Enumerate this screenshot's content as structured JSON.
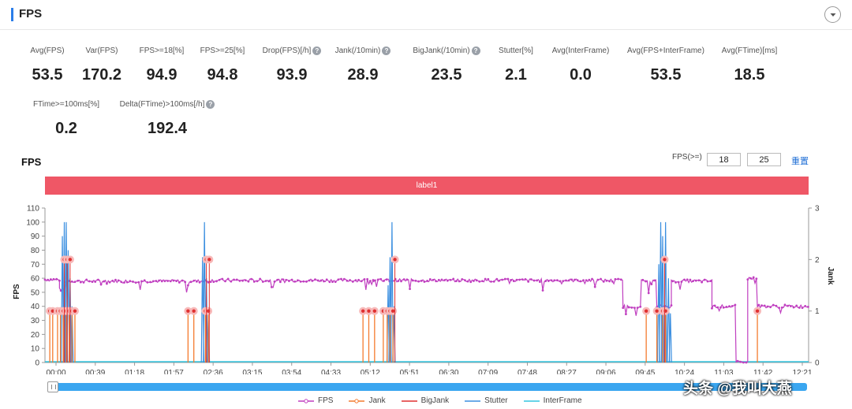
{
  "header": {
    "title": "FPS"
  },
  "metrics": [
    {
      "label": "Avg(FPS)",
      "value": "53.5",
      "help": false
    },
    {
      "label": "Var(FPS)",
      "value": "170.2",
      "help": false
    },
    {
      "label": "FPS>=18[%]",
      "value": "94.9",
      "help": false
    },
    {
      "label": "FPS>=25[%]",
      "value": "94.8",
      "help": false
    },
    {
      "label": "Drop(FPS)[/h]",
      "value": "93.9",
      "help": true
    },
    {
      "label": "Jank(/10min)",
      "value": "28.9",
      "help": true
    },
    {
      "label": "BigJank(/10min)",
      "value": "23.5",
      "help": true
    },
    {
      "label": "Stutter[%]",
      "value": "2.1",
      "help": false
    },
    {
      "label": "Avg(InterFrame)",
      "value": "0.0",
      "help": false
    },
    {
      "label": "Avg(FPS+InterFrame)",
      "value": "53.5",
      "help": false
    },
    {
      "label": "Avg(FTime)[ms]",
      "value": "18.5",
      "help": false
    },
    {
      "label": "FTime>=100ms[%]",
      "value": "0.2",
      "help": false
    },
    {
      "label": "Delta(FTime)>100ms[/h]",
      "value": "192.4",
      "help": true
    }
  ],
  "chart_section": {
    "title": "FPS",
    "threshold_label": "FPS(>=)",
    "threshold_1": "18",
    "threshold_2": "25",
    "reset_label": "重置",
    "band_label": "label1"
  },
  "watermark": "头条 @我叫大燕",
  "colors": {
    "fps": "#c03fc0",
    "jank": "#f47b2f",
    "bigjank": "#e03030",
    "stutter": "#3b8fe0",
    "interframe": "#33c6e0",
    "band": "#ef5766",
    "slider": "#3aa6f0"
  },
  "chart_data": {
    "type": "line",
    "title": "",
    "ylabel": "FPS",
    "y2label": "Jank",
    "ylim": [
      0,
      110
    ],
    "y2lim": [
      0,
      3
    ],
    "yticks": [
      0,
      10,
      20,
      30,
      40,
      50,
      60,
      70,
      80,
      90,
      100,
      110
    ],
    "y2ticks": [
      0,
      1,
      2,
      3
    ],
    "xlim_seconds": [
      0,
      790
    ],
    "xticks": [
      "00:00",
      "00:39",
      "01:18",
      "01:57",
      "02:36",
      "03:15",
      "03:54",
      "04:33",
      "05:12",
      "05:51",
      "06:30",
      "07:09",
      "07:48",
      "08:27",
      "09:06",
      "09:45",
      "10:24",
      "11:03",
      "11:42",
      "12:21"
    ],
    "legend": [
      "FPS",
      "Jank",
      "BigJank",
      "Stutter",
      "InterFrame"
    ],
    "legend_position": "bottom",
    "fps_segments": [
      {
        "t": [
          0,
          15
        ],
        "value": 59
      },
      {
        "t": [
          15,
          22
        ],
        "value": 52
      },
      {
        "t": [
          22,
          170
        ],
        "value": 58
      },
      {
        "t": [
          170,
          340
        ],
        "value": 58.5
      },
      {
        "t": [
          340,
          470
        ],
        "value": 58.5
      },
      {
        "t": [
          470,
          598
        ],
        "value": 58.5
      },
      {
        "t": [
          598,
          617
        ],
        "value": 40
      },
      {
        "t": [
          617,
          633
        ],
        "value": 58
      },
      {
        "t": [
          633,
          648
        ],
        "value": 40
      },
      {
        "t": [
          648,
          690
        ],
        "value": 58
      },
      {
        "t": [
          690,
          715
        ],
        "value": 40
      },
      {
        "t": [
          715,
          727
        ],
        "value": 0
      },
      {
        "t": [
          727,
          737
        ],
        "value": 60
      },
      {
        "t": [
          737,
          790
        ],
        "value": 40
      }
    ],
    "jank_events_seconds": [
      5,
      8,
      13,
      16,
      19,
      22,
      25,
      28,
      31,
      148,
      154,
      166,
      169,
      329,
      335,
      341,
      350,
      354,
      357,
      360,
      622,
      633,
      639,
      642,
      737
    ],
    "jank_event_value": 1,
    "bigjank_events_seconds": [
      20,
      23,
      26,
      167,
      170,
      362,
      641
    ],
    "bigjank_event_value": 2,
    "stutter_spikes": [
      {
        "t": 18,
        "value": 90
      },
      {
        "t": 20,
        "value": 100
      },
      {
        "t": 22,
        "value": 100
      },
      {
        "t": 24,
        "value": 80
      },
      {
        "t": 26,
        "value": 60
      },
      {
        "t": 28,
        "value": 40
      },
      {
        "t": 163,
        "value": 75
      },
      {
        "t": 165,
        "value": 100
      },
      {
        "t": 167,
        "value": 60
      },
      {
        "t": 169,
        "value": 30
      },
      {
        "t": 355,
        "value": 55
      },
      {
        "t": 357,
        "value": 75
      },
      {
        "t": 359,
        "value": 100
      },
      {
        "t": 361,
        "value": 40
      },
      {
        "t": 635,
        "value": 70
      },
      {
        "t": 637,
        "value": 100
      },
      {
        "t": 639,
        "value": 90
      },
      {
        "t": 642,
        "value": 100
      },
      {
        "t": 645,
        "value": 60
      },
      {
        "t": 647,
        "value": 35
      }
    ],
    "interframe_value": 0
  }
}
